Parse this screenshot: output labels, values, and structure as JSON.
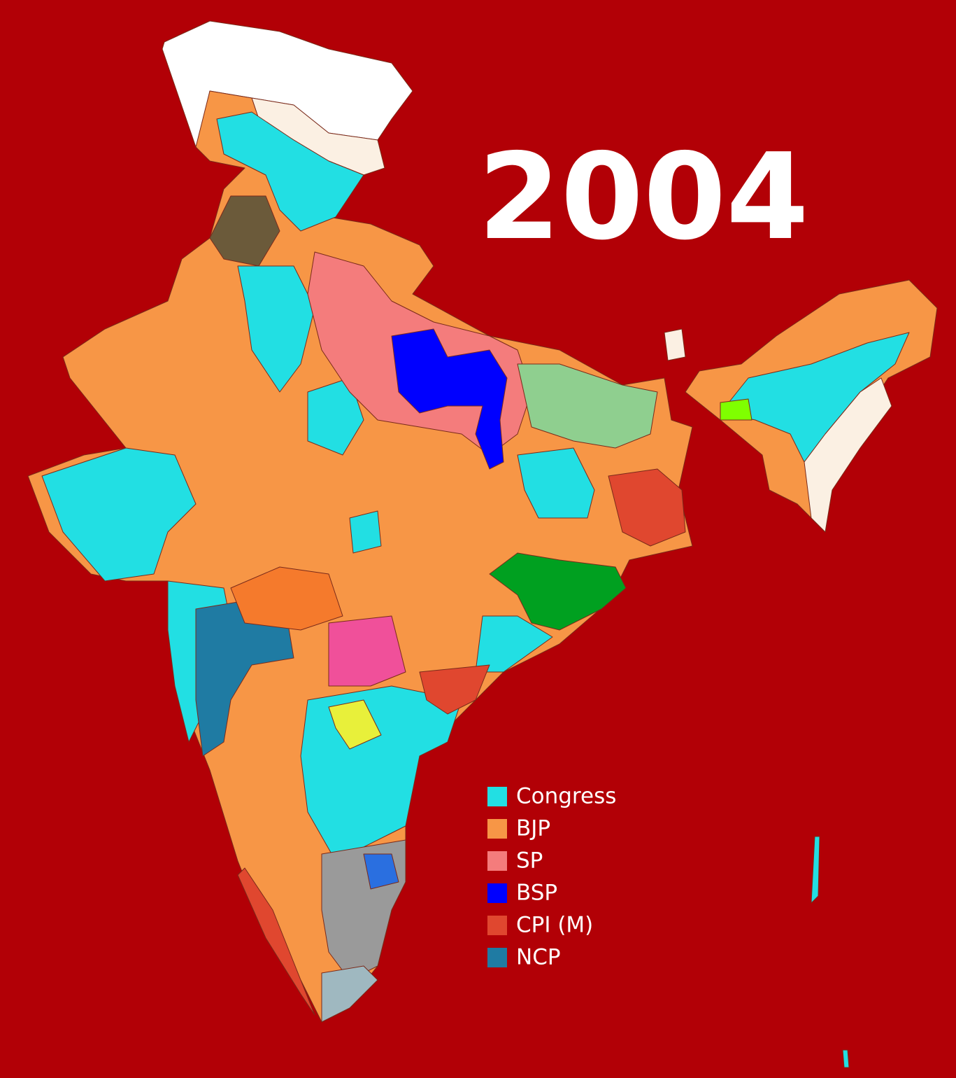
{
  "title": "2004",
  "legend": [
    {
      "label": "Congress",
      "color": "#22dfe3"
    },
    {
      "label": "BJP",
      "color": "#f79646"
    },
    {
      "label": "SP",
      "color": "#f47c7c"
    },
    {
      "label": "BSP",
      "color": "#0000ff"
    },
    {
      "label": "CPI (M)",
      "color": "#e0472f"
    },
    {
      "label": "NCP",
      "color": "#1f7ba3"
    }
  ]
}
